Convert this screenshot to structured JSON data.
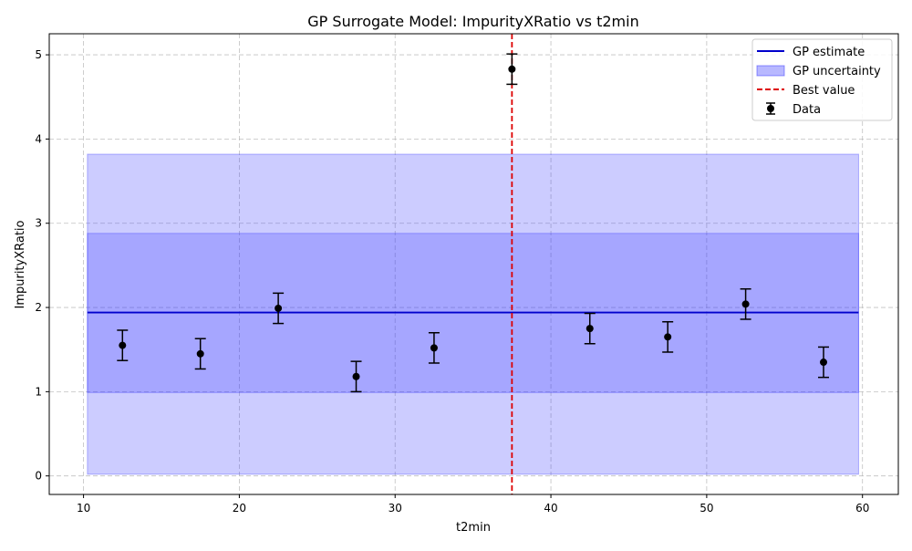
{
  "chart_data": {
    "type": "line",
    "title": "GP Surrogate Model: ImpurityXRatio vs t2min",
    "xlabel": "t2min",
    "ylabel": "ImpurityXRatio",
    "xlim": [
      7.8,
      62.3
    ],
    "ylim": [
      -0.22,
      5.25
    ],
    "xticks": [
      10,
      20,
      30,
      40,
      50,
      60
    ],
    "yticks": [
      0,
      1,
      2,
      3,
      4,
      5
    ],
    "grid": true,
    "legend_position": "top-right",
    "legend": [
      "GP estimate",
      "GP uncertainty",
      "Best value",
      "Data"
    ],
    "gp_estimate": {
      "x_range": [
        10.25,
        59.75
      ],
      "value": 1.94
    },
    "uncertainty_bands": [
      {
        "lower": 0.02,
        "upper": 3.82
      },
      {
        "lower": 0.99,
        "upper": 2.88
      }
    ],
    "best_value_x": 37.5,
    "series": [
      {
        "name": "Data",
        "x": [
          12.5,
          17.5,
          22.5,
          27.5,
          32.5,
          37.5,
          42.5,
          47.5,
          52.5,
          57.5
        ],
        "y": [
          1.55,
          1.45,
          1.99,
          1.18,
          1.52,
          4.83,
          1.75,
          1.65,
          2.04,
          1.35
        ],
        "err": [
          0.18,
          0.18,
          0.18,
          0.18,
          0.18,
          0.18,
          0.18,
          0.18,
          0.18,
          0.18
        ]
      }
    ],
    "colors": {
      "gp_line": "#0000cc",
      "band": "#3333ff",
      "best": "#dd0000",
      "data": "#000000"
    }
  }
}
